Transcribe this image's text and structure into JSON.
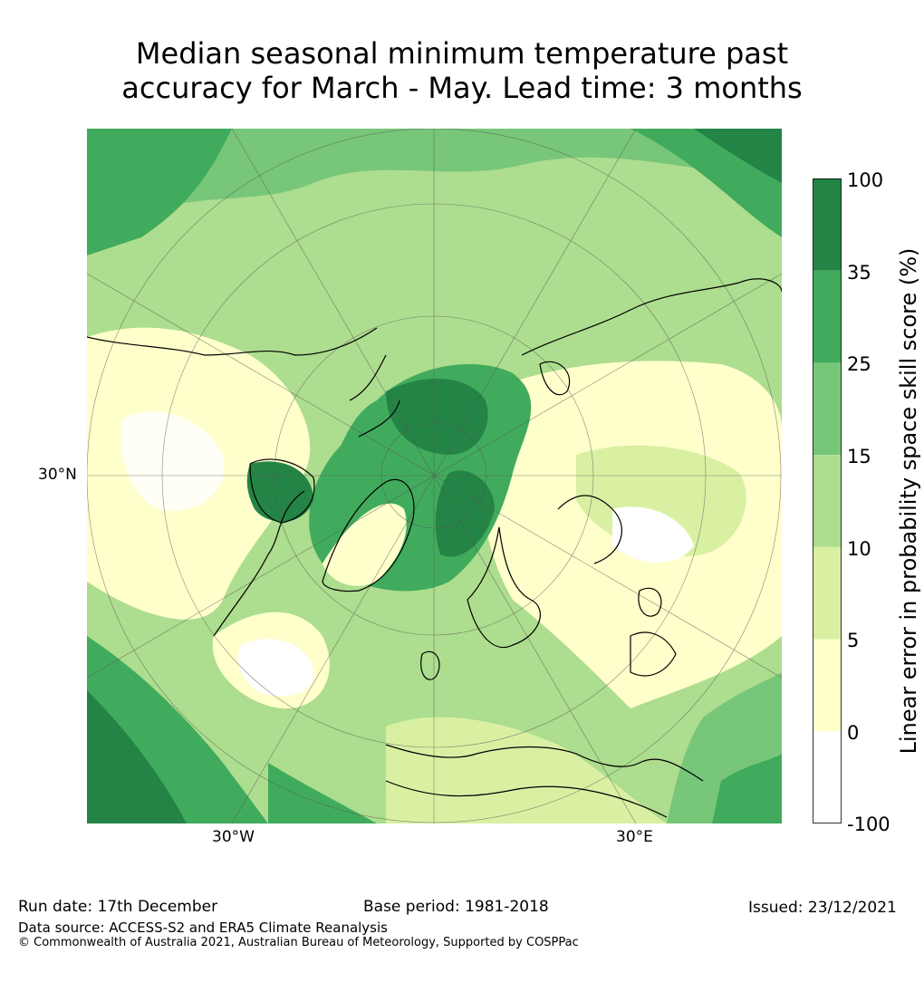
{
  "title_line1": "Median seasonal minimum temperature past",
  "title_line2": "accuracy for March - May. Lead time: 3 months",
  "map": {
    "lat_label": "30°N",
    "lon_labels": [
      "30°W",
      "30°E"
    ]
  },
  "colorbar": {
    "label": "Linear error in probability space skill score (%)",
    "ticks": [
      "100",
      "35",
      "25",
      "15",
      "10",
      "5",
      "0",
      "-100"
    ],
    "bins": [
      {
        "range": "35 to 100",
        "color": "#238445"
      },
      {
        "range": "25 to 35",
        "color": "#41ab5d"
      },
      {
        "range": "15 to 25",
        "color": "#78c679"
      },
      {
        "range": "10 to 15",
        "color": "#addd8e"
      },
      {
        "range": "5 to 10",
        "color": "#d9f0a3"
      },
      {
        "range": "0 to 5",
        "color": "#ffffcc"
      },
      {
        "range": "-100 to 0",
        "color": "#ffffff"
      }
    ]
  },
  "footer": {
    "run_date": "Run date: 17th December",
    "base_period": "Base period: 1981-2018",
    "issued": "Issued: 23/12/2021",
    "data_source": "Data source: ACCESS-S2 and ERA5 Climate Reanalysis",
    "copyright": "© Commonwealth of Australia 2021, Australian Bureau of Meteorology, Supported by COSPPac"
  }
}
